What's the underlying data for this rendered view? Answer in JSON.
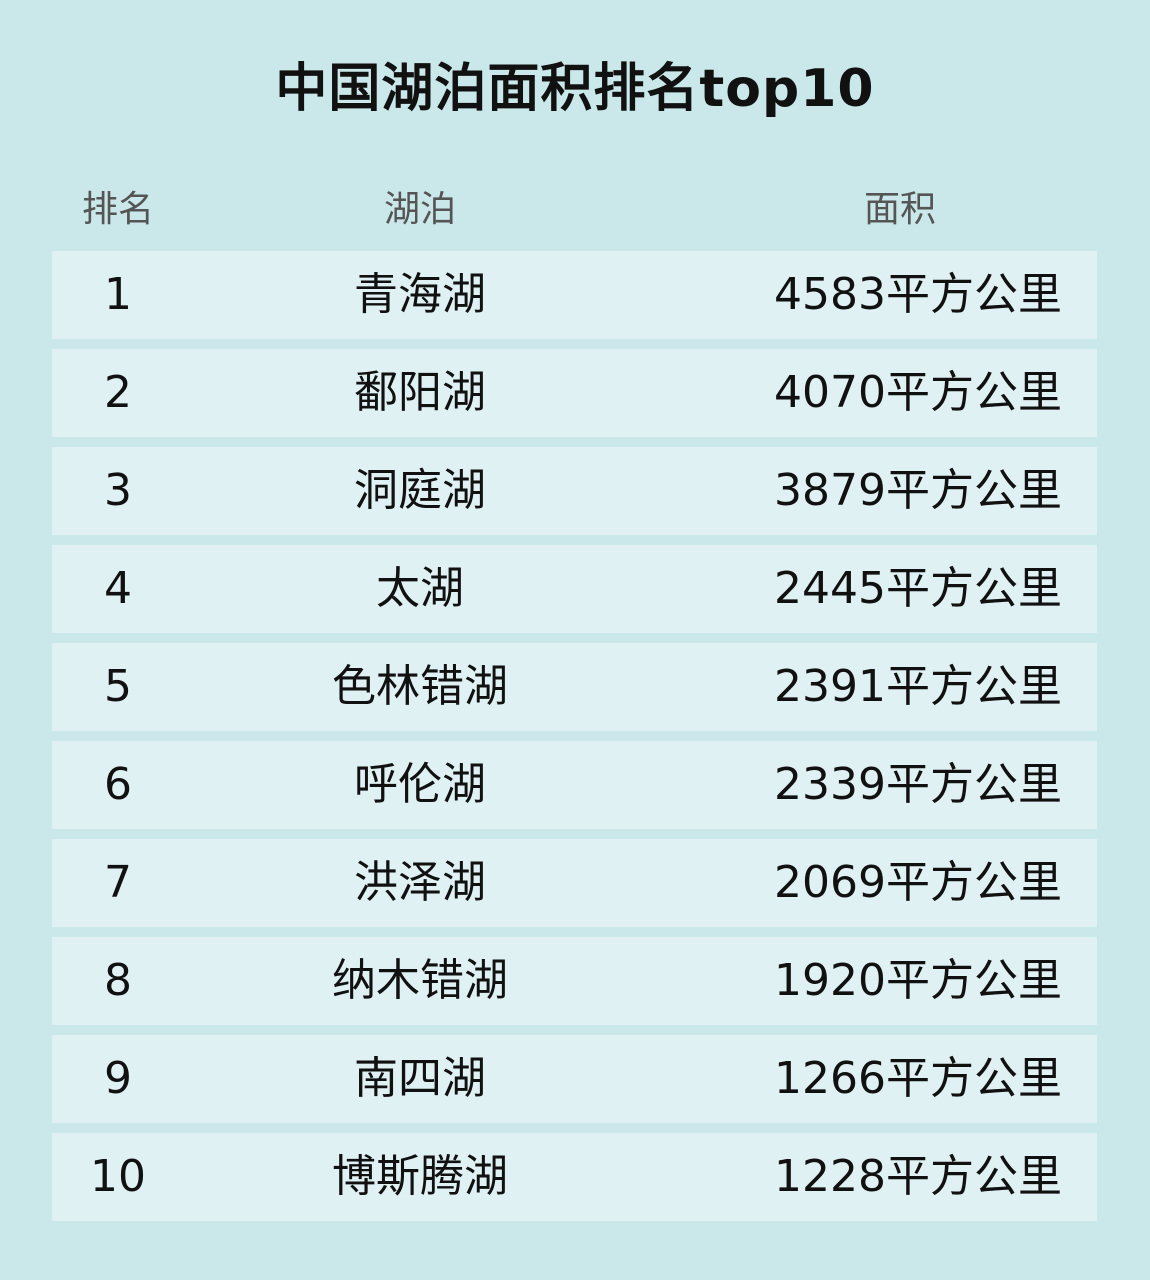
{
  "title": "中国湖泊面积排名top10",
  "headers": {
    "rank": "排名",
    "lake": "湖泊",
    "area": "面积"
  },
  "colors": {
    "background": "#cae8ea",
    "row": "#e0f1f4"
  },
  "chart_data": {
    "type": "table",
    "title": "中国湖泊面积排名top10",
    "columns": [
      "排名",
      "湖泊",
      "面积"
    ],
    "rows": [
      {
        "rank": "1",
        "lake": "青海湖",
        "area": "4583平方公里"
      },
      {
        "rank": "2",
        "lake": "鄱阳湖",
        "area": "4070平方公里"
      },
      {
        "rank": "3",
        "lake": "洞庭湖",
        "area": "3879平方公里"
      },
      {
        "rank": "4",
        "lake": "太湖",
        "area": "2445平方公里"
      },
      {
        "rank": "5",
        "lake": "色林错湖",
        "area": "2391平方公里"
      },
      {
        "rank": "6",
        "lake": "呼伦湖",
        "area": "2339平方公里"
      },
      {
        "rank": "7",
        "lake": "洪泽湖",
        "area": "2069平方公里"
      },
      {
        "rank": "8",
        "lake": "纳木错湖",
        "area": "1920平方公里"
      },
      {
        "rank": "9",
        "lake": "南四湖",
        "area": "1266平方公里"
      },
      {
        "rank": "10",
        "lake": "博斯腾湖",
        "area": "1228平方公里"
      }
    ]
  }
}
